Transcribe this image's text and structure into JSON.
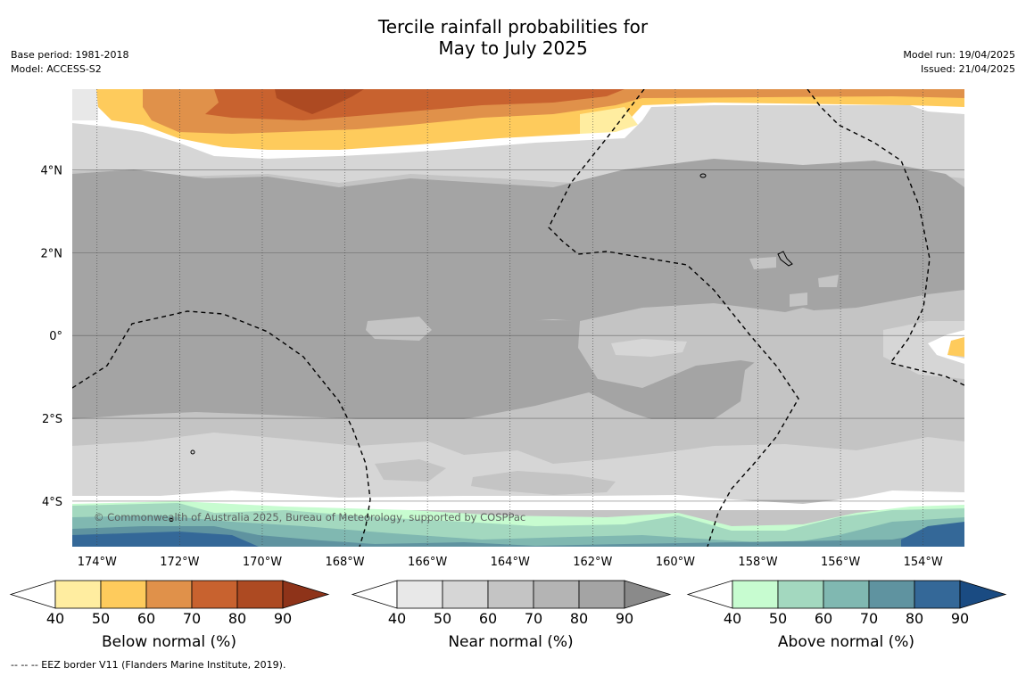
{
  "header": {
    "title_line1": "Tercile rainfall probabilities for",
    "title_line2": "May to July 2025",
    "base_period": "Base period: 1981-2018",
    "model": "Model: ACCESS-S2",
    "model_run": "Model run: 19/04/2025",
    "issued": "Issued: 21/04/2025"
  },
  "map": {
    "copyright": "© Commonwealth of Australia 2025, Bureau of Meteorology, supported by COSPPac",
    "lat_labels": [
      "4°N",
      "2°N",
      "0°",
      "2°S",
      "4°S"
    ],
    "lon_labels": [
      "174°W",
      "172°W",
      "170°W",
      "168°W",
      "166°W",
      "164°W",
      "162°W",
      "160°W",
      "158°W",
      "156°W",
      "154°W"
    ]
  },
  "colorbars": [
    {
      "label": "Below normal (%)",
      "ticks": [
        "40",
        "50",
        "60",
        "70",
        "80",
        "90"
      ],
      "colors": [
        "#ffeda0",
        "#fecb5c",
        "#e0914a",
        "#c8622f",
        "#ad4a22",
        "#8e3319"
      ]
    },
    {
      "label": "Near normal (%)",
      "ticks": [
        "40",
        "50",
        "60",
        "70",
        "80",
        "90"
      ],
      "colors": [
        "#e8e8e8",
        "#d6d6d6",
        "#c4c4c4",
        "#b4b4b4",
        "#a4a4a4",
        "#8a8a8a"
      ]
    },
    {
      "label": "Above normal (%)",
      "ticks": [
        "40",
        "50",
        "60",
        "70",
        "80",
        "90"
      ],
      "colors": [
        "#c7fcd0",
        "#a3d8bf",
        "#80b8b1",
        "#5f93a0",
        "#346898",
        "#1a4b82"
      ]
    }
  ],
  "footer": {
    "legend_note": "--  --  -- EEZ border V11 (Flanders Marine Institute, 2019)."
  },
  "chart_data": {
    "type": "heatmap",
    "title": "Tercile rainfall probabilities for May to July 2025",
    "x_axis": {
      "ticks": [
        "174°W",
        "172°W",
        "170°W",
        "168°W",
        "166°W",
        "164°W",
        "162°W",
        "160°W",
        "158°W",
        "156°W",
        "154°W"
      ],
      "range": [
        -174.6,
        -153.0
      ]
    },
    "y_axis": {
      "ticks": [
        "4°N",
        "2°N",
        "0°",
        "2°S",
        "4°S"
      ],
      "range": [
        -5.1,
        5.95
      ]
    },
    "grid": true,
    "categories": [
      "Below normal",
      "Near normal",
      "Above normal"
    ],
    "probability_ticks": [
      40,
      50,
      60,
      70,
      80,
      90
    ],
    "regions": [
      {
        "area": "far north (5–6°N)",
        "category": "Below normal",
        "probability": "60–80"
      },
      {
        "area": "4–5°N band",
        "category": "Near normal",
        "probability": "50–70"
      },
      {
        "area": "3°N to 1°S",
        "category": "Near normal",
        "probability": "80–90"
      },
      {
        "area": "1°S to 4°S",
        "category": "Near normal",
        "probability": "50–70"
      },
      {
        "area": "south edge (4.5–5°S)",
        "category": "Above normal",
        "probability": "50–80"
      }
    ]
  }
}
